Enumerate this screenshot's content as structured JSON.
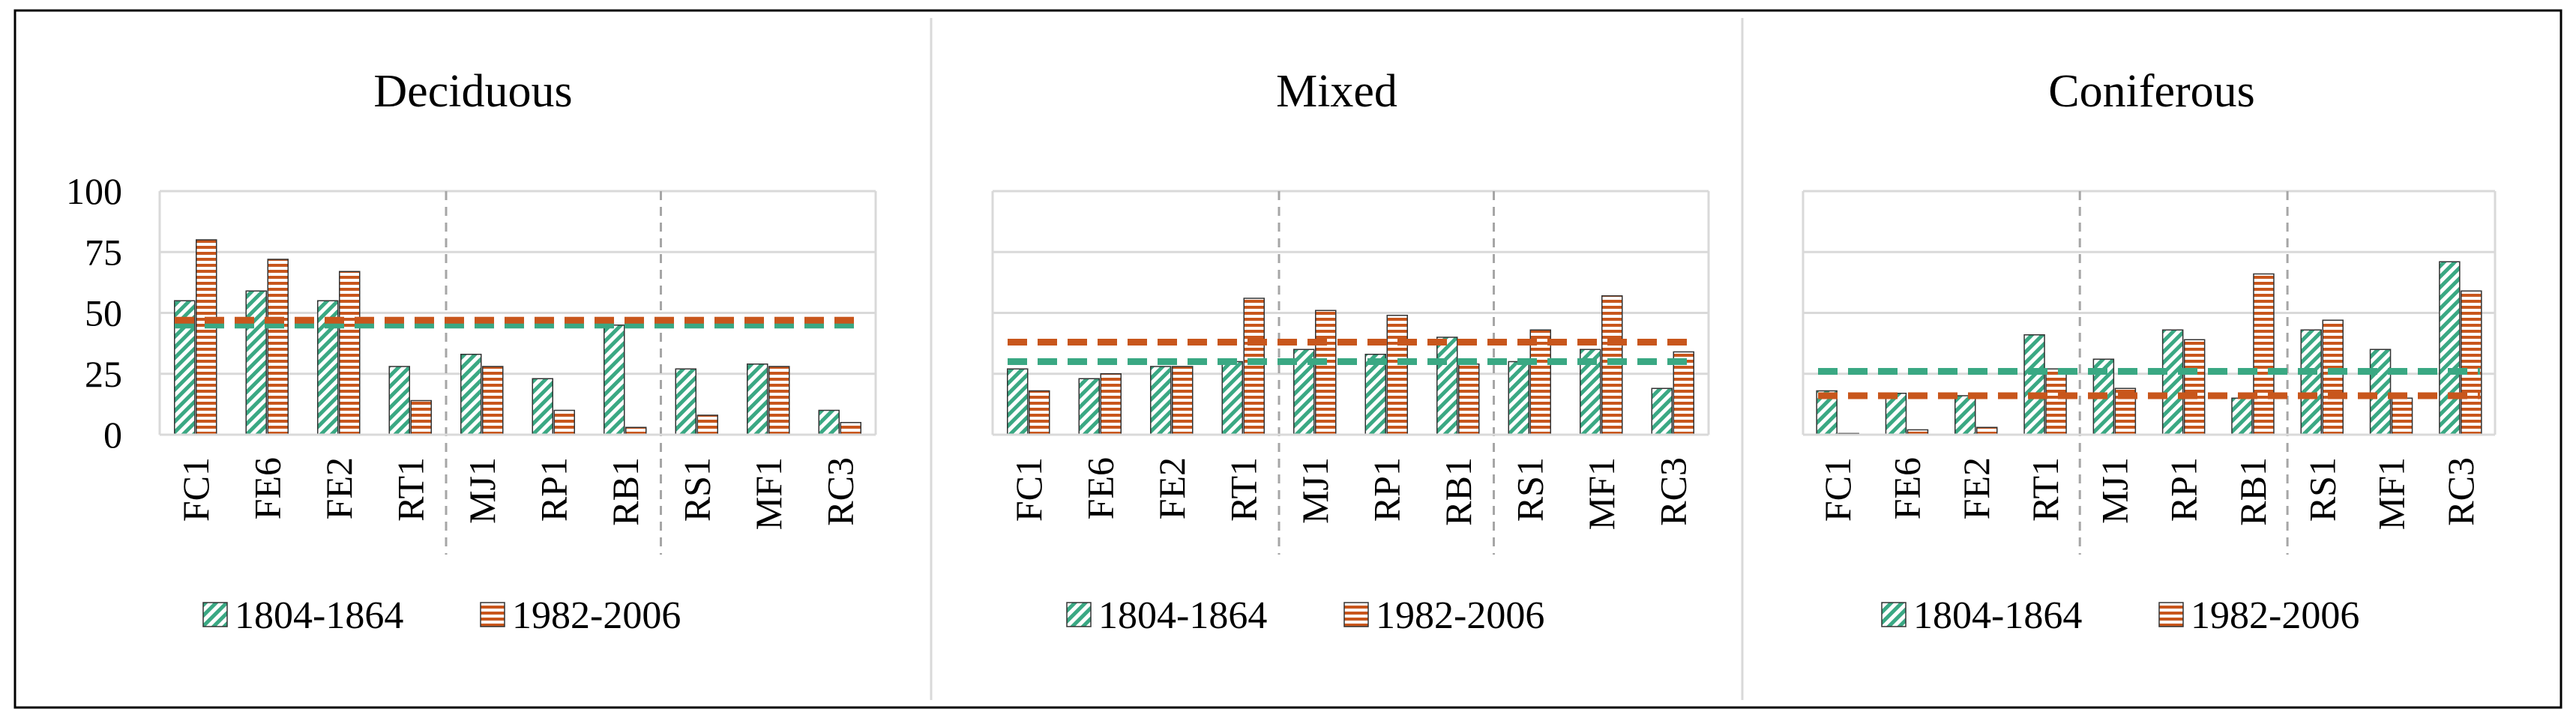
{
  "colors": {
    "series1": "#3aa883",
    "series2": "#c8561c",
    "grid": "#d9d9d9",
    "divider": "#a6a6a6",
    "frame": "#000000"
  },
  "chart_data": [
    {
      "type": "bar",
      "title": "Deciduous",
      "categories": [
        "FC1",
        "FE6",
        "FE2",
        "RT1",
        "MJ1",
        "RP1",
        "RB1",
        "RS1",
        "MF1",
        "RC3"
      ],
      "series": [
        {
          "name": "1804-1864",
          "pattern": "diagonal-stripes",
          "values": [
            55,
            59,
            55,
            28,
            33,
            23,
            45,
            27,
            29,
            10
          ],
          "mean_line": 45
        },
        {
          "name": "1982-2006",
          "pattern": "horizontal-stripes",
          "values": [
            80,
            72,
            67,
            14,
            28,
            10,
            3,
            8,
            28,
            5
          ],
          "mean_line": 47
        }
      ],
      "ylim": [
        0,
        100
      ],
      "yticks": [
        "0",
        "25",
        "50",
        "75",
        "100"
      ],
      "grid": true,
      "group_dividers_after": [
        "RT1",
        "RB1"
      ],
      "legend": "bottom"
    },
    {
      "type": "bar",
      "title": "Mixed",
      "categories": [
        "FC1",
        "FE6",
        "FE2",
        "RT1",
        "MJ1",
        "RP1",
        "RB1",
        "RS1",
        "MF1",
        "RC3"
      ],
      "series": [
        {
          "name": "1804-1864",
          "pattern": "diagonal-stripes",
          "values": [
            27,
            23,
            28,
            30,
            35,
            33,
            40,
            30,
            35,
            19
          ],
          "mean_line": 30
        },
        {
          "name": "1982-2006",
          "pattern": "horizontal-stripes",
          "values": [
            18,
            25,
            28,
            56,
            51,
            49,
            29,
            43,
            57,
            34
          ],
          "mean_line": 38
        }
      ],
      "ylim": [
        0,
        100
      ],
      "yticks": [
        "0",
        "25",
        "50",
        "75",
        "100"
      ],
      "grid": true,
      "group_dividers_after": [
        "RT1",
        "RB1"
      ],
      "legend": "bottom"
    },
    {
      "type": "bar",
      "title": "Coniferous",
      "categories": [
        "FC1",
        "FE6",
        "FE2",
        "RT1",
        "MJ1",
        "RP1",
        "RB1",
        "RS1",
        "MF1",
        "RC3"
      ],
      "series": [
        {
          "name": "1804-1864",
          "pattern": "diagonal-stripes",
          "values": [
            18,
            17,
            16,
            41,
            31,
            43,
            15,
            43,
            35,
            71
          ],
          "mean_line": 26
        },
        {
          "name": "1982-2006",
          "pattern": "horizontal-stripes",
          "values": [
            0.5,
            2,
            3,
            27,
            19,
            39,
            66,
            47,
            15,
            59
          ],
          "mean_line": 16
        }
      ],
      "ylim": [
        0,
        100
      ],
      "yticks": [
        "0",
        "25",
        "50",
        "75",
        "100"
      ],
      "grid": true,
      "group_dividers_after": [
        "RT1",
        "RB1"
      ],
      "legend": "bottom"
    }
  ]
}
